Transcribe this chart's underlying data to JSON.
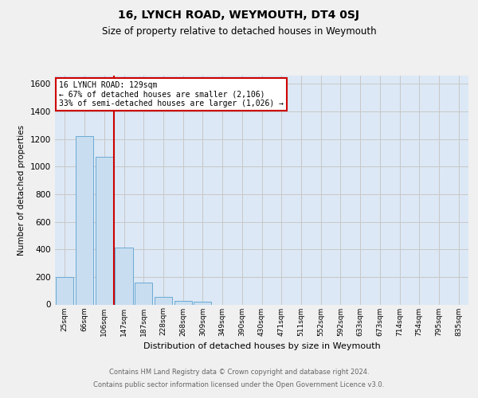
{
  "title": "16, LYNCH ROAD, WEYMOUTH, DT4 0SJ",
  "subtitle": "Size of property relative to detached houses in Weymouth",
  "xlabel": "Distribution of detached houses by size in Weymouth",
  "ylabel": "Number of detached properties",
  "bar_labels": [
    "25sqm",
    "66sqm",
    "106sqm",
    "147sqm",
    "187sqm",
    "228sqm",
    "268sqm",
    "309sqm",
    "349sqm",
    "390sqm",
    "430sqm",
    "471sqm",
    "511sqm",
    "552sqm",
    "592sqm",
    "633sqm",
    "673sqm",
    "714sqm",
    "754sqm",
    "795sqm",
    "835sqm"
  ],
  "bar_values": [
    200,
    1220,
    1070,
    410,
    160,
    55,
    25,
    20,
    0,
    0,
    0,
    0,
    0,
    0,
    0,
    0,
    0,
    0,
    0,
    0,
    0
  ],
  "bar_color": "#c8ddf0",
  "bar_edge_color": "#6aaad4",
  "vline_color": "#cc0000",
  "vline_x": 2.5,
  "annotation_title": "16 LYNCH ROAD: 129sqm",
  "annotation_line1": "← 67% of detached houses are smaller (2,106)",
  "annotation_line2": "33% of semi-detached houses are larger (1,026) →",
  "annotation_box_color": "#ffffff",
  "annotation_box_edge": "#cc0000",
  "ylim": [
    0,
    1660
  ],
  "yticks": [
    0,
    200,
    400,
    600,
    800,
    1000,
    1200,
    1400,
    1600
  ],
  "grid_color": "#c8c8c8",
  "background_color": "#dce8f5",
  "fig_bg_color": "#f0f0f0",
  "footer1": "Contains HM Land Registry data © Crown copyright and database right 2024.",
  "footer2": "Contains public sector information licensed under the Open Government Licence v3.0."
}
